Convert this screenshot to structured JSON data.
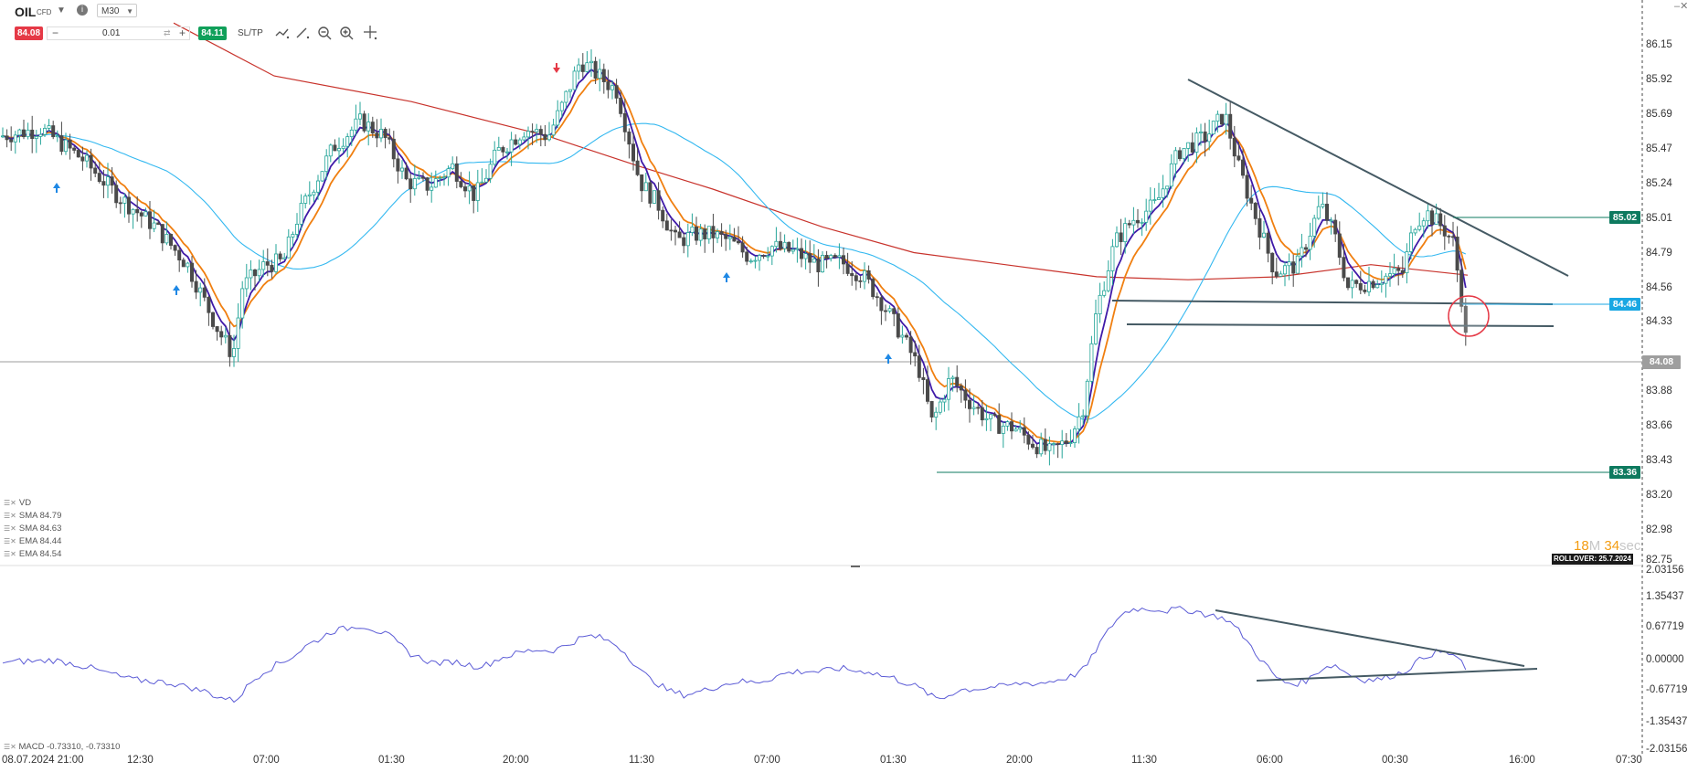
{
  "toolbar": {
    "symbol": "OIL",
    "symbol_type": "CFD",
    "timeframe": "M30",
    "sell_price": "84.08",
    "buy_price": "84.11",
    "volume": "0.01",
    "minus": "−",
    "plus": "+",
    "sltp_label": "SL/TP",
    "dropdown_icon": "chevron-down-icon",
    "info_icon": "info-icon"
  },
  "window": {
    "controls": "–✕"
  },
  "indicators": [
    {
      "label": "VD"
    },
    {
      "label": "SMA 84.79"
    },
    {
      "label": "SMA 84.63"
    },
    {
      "label": "EMA 84.44"
    },
    {
      "label": "EMA 84.54"
    }
  ],
  "y_axis": [
    "86.15",
    "85.92",
    "85.69",
    "85.47",
    "85.24",
    "85.01",
    "84.79",
    "84.56",
    "84.33",
    "84.10",
    "83.88",
    "83.66",
    "83.43",
    "83.20",
    "82.98",
    "82.75"
  ],
  "price_tags": [
    {
      "label": "85.02",
      "color": "#0e7a5f"
    },
    {
      "label": "84.46",
      "color": "#19a7e3"
    },
    {
      "label": "84.08",
      "color": "#9e9e9e"
    },
    {
      "label": "83.36",
      "color": "#0e7a5f"
    }
  ],
  "macd_axis": [
    "2.03156",
    "1.35437",
    "0.67719",
    "0.00000",
    "-0.67719",
    "-1.35437",
    "-2.03156"
  ],
  "macd_label": "MACD -0.73310, -0.73310",
  "x_axis": [
    "08.07.2024 21:00",
    "12:30",
    "07:00",
    "01:30",
    "20:00",
    "11:30",
    "07:00",
    "01:30",
    "20:00",
    "11:30",
    "06:00",
    "00:30",
    "16:00",
    "07:30"
  ],
  "timer": {
    "minutes": "18",
    "m_unit": "M",
    "seconds": "34",
    "s_unit": "sec"
  },
  "rollover": "ROLLOVER: 25.7.2024",
  "colors": {
    "up": "#26a69a",
    "down": "#4a4a4a",
    "ema_fast": "#3f1aa8",
    "ema_slow": "#f07f10",
    "sma_mid": "#33b8f0",
    "sma_long": "#c8332c",
    "macd": "#5b5bd6"
  },
  "chart_data": {
    "type": "candlestick",
    "symbol": "OIL",
    "timeframe": "M30",
    "ylim": [
      82.75,
      86.15
    ],
    "current_price": 84.08,
    "key_levels": [
      85.02,
      84.46,
      84.33,
      83.36
    ],
    "series_anchors": [
      {
        "time": "08.07.2024 21:00",
        "price": 85.6
      },
      {
        "time": "12:30",
        "price": 85.3
      },
      {
        "time": "07:00",
        "price": 84.05
      },
      {
        "time": "01:30",
        "price": 85.75
      },
      {
        "time": "20:00",
        "price": 85.2
      },
      {
        "time": "11:30",
        "price": 86.05
      },
      {
        "time": "07:00",
        "price": 84.65
      },
      {
        "time": "01:30",
        "price": 84.1
      },
      {
        "time": "20:00",
        "price": 83.55
      },
      {
        "time": "11:30",
        "price": 84.75
      },
      {
        "time": "06:00",
        "price": 85.7
      },
      {
        "time": "00:30",
        "price": 84.6
      },
      {
        "time": "last",
        "price": 84.08
      }
    ],
    "macd": {
      "ylim": [
        -2.03156,
        2.03156
      ],
      "last": -0.7331
    }
  }
}
